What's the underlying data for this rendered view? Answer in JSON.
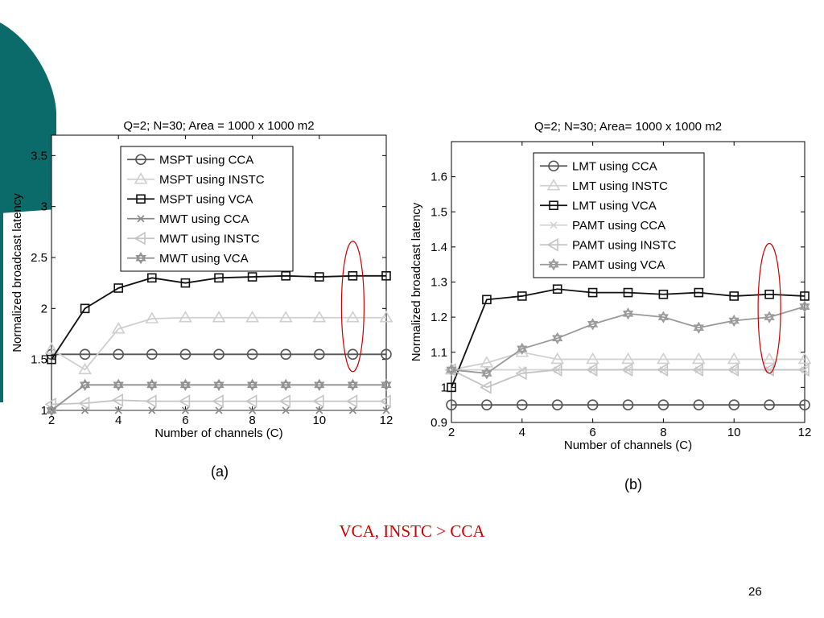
{
  "slide": {
    "note": "VCA, INSTC > CCA",
    "page_number": "26",
    "accent_color": "#0b6b6a",
    "highlight_color": "#cc0000"
  },
  "chart_data": [
    {
      "type": "line",
      "title": "Q=2; N=30; Area = 1000 x 1000 m2",
      "caption": "(a)",
      "xlabel": "Number of channels (C)",
      "ylabel": "Normalized broadcast latency",
      "x": [
        2,
        3,
        4,
        5,
        6,
        7,
        8,
        9,
        10,
        11,
        12
      ],
      "xlim": [
        2,
        12
      ],
      "ylim": [
        1,
        3.7
      ],
      "xticks": [
        2,
        4,
        6,
        8,
        10,
        12
      ],
      "yticks": [
        1,
        1.5,
        2,
        2.5,
        3,
        3.5
      ],
      "ytick_labels": [
        "1",
        "1.5",
        "2",
        "2.5",
        "3",
        "3.5"
      ],
      "legend_position": "top-center",
      "highlight": {
        "x": 11,
        "y_range": [
          1.38,
          2.66
        ],
        "color": "#cc0000"
      },
      "series": [
        {
          "name": "MSPT using CCA",
          "marker": "circle",
          "color": "#555555",
          "values": [
            1.55,
            1.55,
            1.55,
            1.55,
            1.55,
            1.55,
            1.55,
            1.55,
            1.55,
            1.55,
            1.55
          ]
        },
        {
          "name": "MSPT using INSTC",
          "marker": "triangle-up",
          "color": "#cfcfcf",
          "values": [
            1.6,
            1.4,
            1.8,
            1.9,
            1.91,
            1.91,
            1.91,
            1.91,
            1.91,
            1.91,
            1.91
          ]
        },
        {
          "name": "MSPT using VCA",
          "marker": "square",
          "color": "#111111",
          "values": [
            1.5,
            2.0,
            2.2,
            2.3,
            2.25,
            2.3,
            2.31,
            2.32,
            2.31,
            2.32,
            2.32
          ]
        },
        {
          "name": "MWT using CCA",
          "marker": "x",
          "color": "#8a8a8a",
          "values": [
            1.0,
            1.0,
            1.0,
            1.0,
            1.0,
            1.0,
            1.0,
            1.0,
            1.0,
            1.0,
            1.0
          ]
        },
        {
          "name": "MWT using INSTC",
          "marker": "triangle-left",
          "color": "#c4c4c4",
          "values": [
            1.06,
            1.07,
            1.1,
            1.09,
            1.09,
            1.09,
            1.09,
            1.09,
            1.09,
            1.09,
            1.09
          ]
        },
        {
          "name": "MWT using VCA",
          "marker": "hexagram",
          "color": "#909090",
          "values": [
            1.0,
            1.25,
            1.25,
            1.25,
            1.25,
            1.25,
            1.25,
            1.25,
            1.25,
            1.25,
            1.25
          ]
        }
      ]
    },
    {
      "type": "line",
      "title": "Q=2; N=30; Area= 1000 x 1000 m2",
      "caption": "(b)",
      "xlabel": "Number of channels (C)",
      "ylabel": "Normalized broadcast latency",
      "x": [
        2,
        3,
        4,
        5,
        6,
        7,
        8,
        9,
        10,
        11,
        12
      ],
      "xlim": [
        2,
        12
      ],
      "ylim": [
        0.9,
        1.7
      ],
      "xticks": [
        2,
        4,
        6,
        8,
        10,
        12
      ],
      "yticks": [
        0.9,
        1,
        1.1,
        1.2,
        1.3,
        1.4,
        1.5,
        1.6
      ],
      "ytick_labels": [
        "0.9",
        "1",
        "1.1",
        "1.2",
        "1.3",
        "1.4",
        "1.5",
        "1.6"
      ],
      "legend_position": "top-center",
      "highlight": {
        "x": 11,
        "y_range": [
          1.04,
          1.41
        ],
        "color": "#cc0000"
      },
      "series": [
        {
          "name": "LMT using CCA",
          "marker": "circle",
          "color": "#555555",
          "values": [
            0.95,
            0.95,
            0.95,
            0.95,
            0.95,
            0.95,
            0.95,
            0.95,
            0.95,
            0.95,
            0.95
          ]
        },
        {
          "name": "LMT using INSTC",
          "marker": "triangle-up",
          "color": "#d0d0d0",
          "values": [
            1.05,
            1.07,
            1.1,
            1.08,
            1.08,
            1.08,
            1.08,
            1.08,
            1.08,
            1.08,
            1.08
          ]
        },
        {
          "name": "LMT using VCA",
          "marker": "square",
          "color": "#111111",
          "values": [
            1.0,
            1.25,
            1.26,
            1.28,
            1.27,
            1.27,
            1.265,
            1.27,
            1.26,
            1.265,
            1.26
          ]
        },
        {
          "name": "PAMT using CCA",
          "marker": "x",
          "color": "#d4d4d4",
          "values": [
            1.05,
            1.05,
            1.05,
            1.05,
            1.05,
            1.05,
            1.05,
            1.05,
            1.05,
            1.05,
            1.05
          ]
        },
        {
          "name": "PAMT using INSTC",
          "marker": "triangle-left",
          "color": "#c4c4c4",
          "values": [
            1.05,
            1.0,
            1.04,
            1.05,
            1.05,
            1.05,
            1.05,
            1.05,
            1.05,
            1.05,
            1.05
          ]
        },
        {
          "name": "PAMT using VCA",
          "marker": "hexagram",
          "color": "#999999",
          "values": [
            1.05,
            1.04,
            1.11,
            1.14,
            1.18,
            1.21,
            1.2,
            1.17,
            1.19,
            1.2,
            1.23
          ]
        }
      ]
    }
  ]
}
